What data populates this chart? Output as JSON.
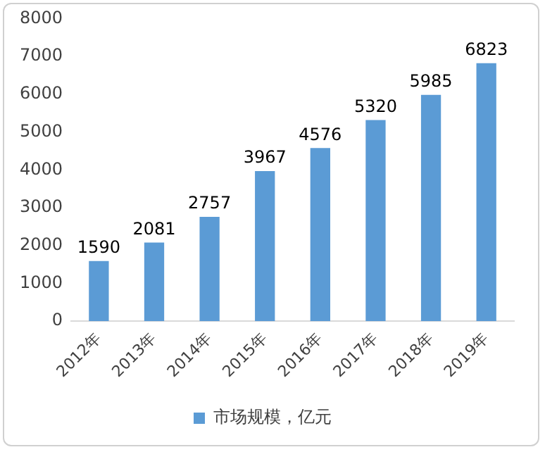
{
  "chart_data": {
    "type": "bar",
    "categories": [
      "2012年",
      "2013年",
      "2014年",
      "2015年",
      "2016年",
      "2017年",
      "2018年",
      "2019年"
    ],
    "series": [
      {
        "name": "市场规模，亿元",
        "color": "#5b9bd5",
        "values": [
          1590,
          2081,
          2757,
          3967,
          4576,
          5320,
          5985,
          6823
        ]
      }
    ],
    "ylim": [
      0,
      8000
    ],
    "yticks": [
      0,
      1000,
      2000,
      3000,
      4000,
      5000,
      6000,
      7000,
      8000
    ],
    "grid": false,
    "legend": "bottom",
    "data_labels": true
  }
}
